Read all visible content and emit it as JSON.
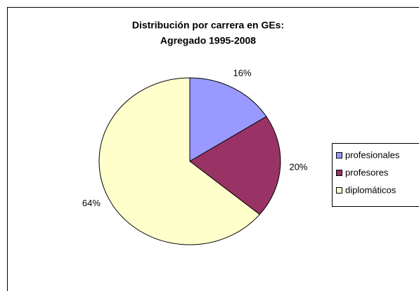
{
  "chart_data": {
    "type": "pie",
    "title": [
      "Distribución por carrera en GEs:",
      "Agregado 1995-2008"
    ],
    "categories": [
      "profesionales",
      "profesores",
      "diplomáticos"
    ],
    "values": [
      16,
      20,
      64
    ],
    "value_labels": [
      "16%",
      "20%",
      "64%"
    ],
    "colors": [
      "#9999ff",
      "#993366",
      "#ffffcc"
    ],
    "legend": "right"
  }
}
